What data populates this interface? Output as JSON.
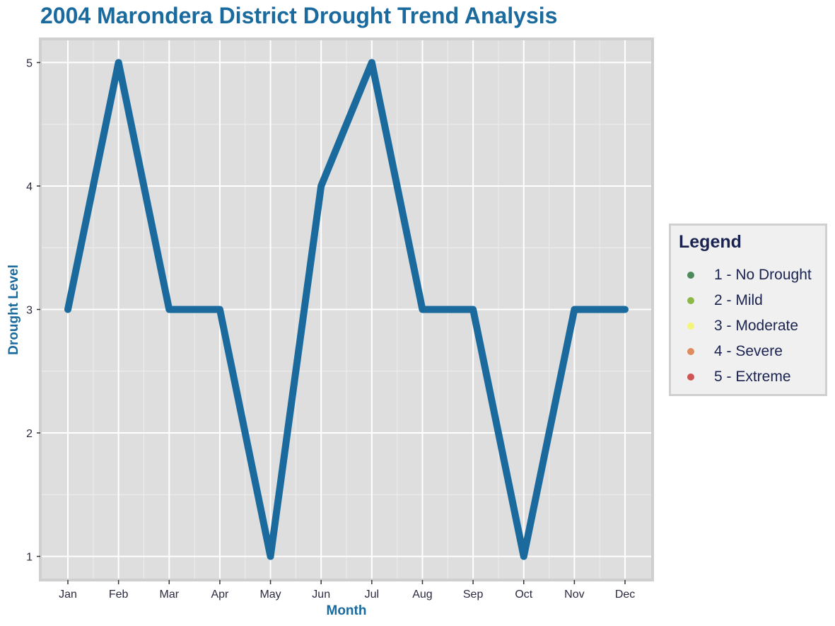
{
  "chart_data": {
    "type": "line",
    "title": "2004 Marondera District Drought Trend Analysis",
    "xlabel": "Month",
    "ylabel": "Drought Level",
    "categories": [
      "Jan",
      "Feb",
      "Mar",
      "Apr",
      "May",
      "Jun",
      "Jul",
      "Aug",
      "Sep",
      "Oct",
      "Nov",
      "Dec"
    ],
    "values": [
      3,
      5,
      3,
      3,
      1,
      4,
      5,
      3,
      3,
      1,
      3,
      3
    ],
    "y_ticks": [
      "1",
      "2",
      "3",
      "4",
      "5"
    ],
    "ylim": [
      0.82,
      5.18
    ],
    "grid": true,
    "line_color": "#1a6a9e",
    "panel_color": "#dedede",
    "legend": {
      "title": "Legend",
      "position": "right",
      "items": [
        {
          "label": "1 - No Drought",
          "color": "#4d8a5a"
        },
        {
          "label": "2 - Mild",
          "color": "#8cb84a"
        },
        {
          "label": "3 - Moderate",
          "color": "#f4f47a"
        },
        {
          "label": "4 - Severe",
          "color": "#e08a5e"
        },
        {
          "label": "5 - Extreme",
          "color": "#d05454"
        }
      ]
    }
  }
}
